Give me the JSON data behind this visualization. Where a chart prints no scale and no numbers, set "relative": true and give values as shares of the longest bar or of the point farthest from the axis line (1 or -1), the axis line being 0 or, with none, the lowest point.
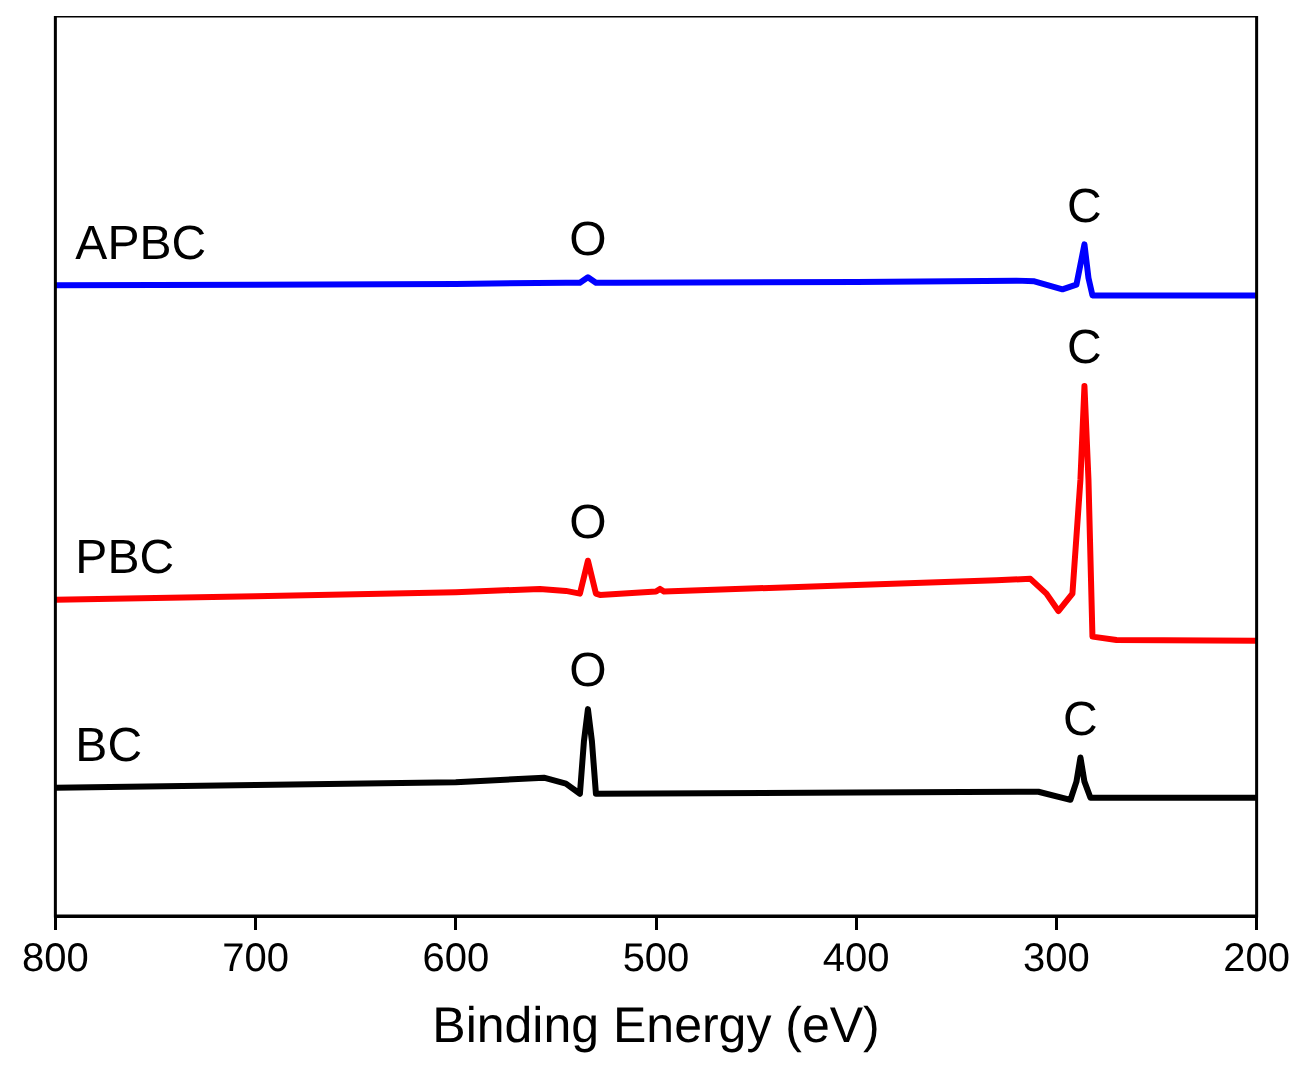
{
  "chart_data": {
    "type": "line",
    "xlabel": "Binding Energy (eV)",
    "relative": true,
    "xlim": [
      800,
      200
    ],
    "xticks": [
      800,
      700,
      600,
      500,
      400,
      300,
      200
    ],
    "grid": false,
    "legend": false,
    "marker": "none",
    "line_style": "solid",
    "series": [
      {
        "name": "APBC",
        "color": "#0000ff",
        "x": [
          800,
          700,
          600,
          545,
          538,
          534,
          530,
          520,
          400,
          320,
          311,
          297,
          290,
          286,
          284,
          282,
          250,
          200
        ],
        "values": [
          0.939,
          0.94,
          0.941,
          0.943,
          0.943,
          0.951,
          0.943,
          0.943,
          0.944,
          0.946,
          0.945,
          0.933,
          0.94,
          1,
          0.95,
          0.924,
          0.924,
          0.924
        ]
      },
      {
        "name": "PBC",
        "color": "#ff0000",
        "x": [
          800,
          700,
          600,
          558,
          545,
          538,
          534,
          530,
          528,
          500,
          498,
          496,
          400,
          330,
          313,
          305,
          299,
          292,
          288,
          286,
          284,
          282,
          270,
          200
        ],
        "values": [
          0.471,
          0.476,
          0.482,
          0.487,
          0.484,
          0.48,
          0.529,
          0.48,
          0.478,
          0.483,
          0.487,
          0.483,
          0.493,
          0.5,
          0.502,
          0.48,
          0.454,
          0.48,
          0.65,
          0.789,
          0.65,
          0.416,
          0.411,
          0.41
        ]
      },
      {
        "name": "BC",
        "color": "#000000",
        "x": [
          800,
          700,
          600,
          556,
          545,
          538,
          536,
          534,
          532,
          530,
          400,
          309,
          293,
          290,
          288,
          286,
          283,
          200
        ],
        "values": [
          0.191,
          0.195,
          0.199,
          0.206,
          0.197,
          0.182,
          0.26,
          0.308,
          0.26,
          0.182,
          0.184,
          0.185,
          0.173,
          0.2,
          0.236,
          0.2,
          0.176,
          0.176
        ]
      }
    ],
    "annotations": [
      {
        "text": "O",
        "x": 534,
        "y": 0.951
      },
      {
        "text": "C",
        "x": 286,
        "y": 1
      },
      {
        "text": "O",
        "x": 534,
        "y": 0.529
      },
      {
        "text": "C",
        "x": 286,
        "y": 0.789
      },
      {
        "text": "O",
        "x": 534,
        "y": 0.308
      },
      {
        "text": "C",
        "x": 288,
        "y": 0.236
      }
    ]
  }
}
